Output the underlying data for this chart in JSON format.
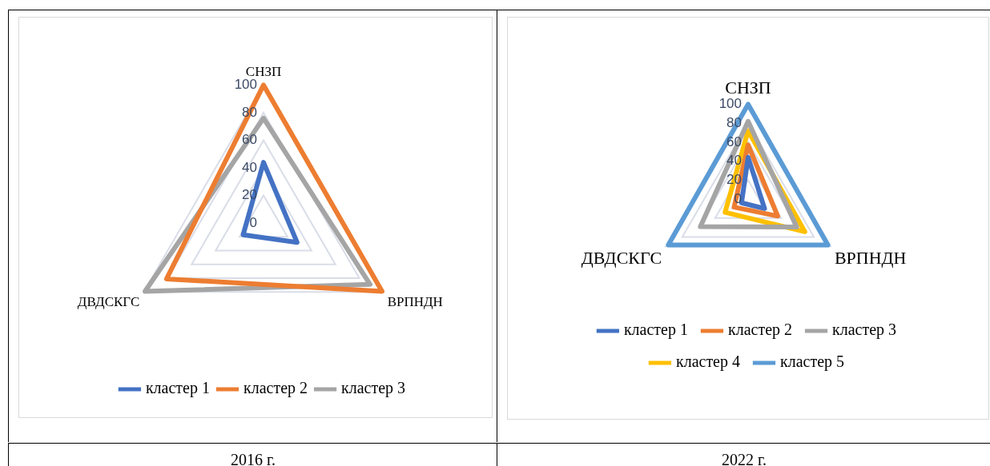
{
  "chart_data": [
    {
      "type": "radar",
      "categories": [
        "СНЗП",
        "ВРПНДН",
        "ДВДСКГС"
      ],
      "ylim": [
        0,
        100
      ],
      "yticks": [
        0,
        20,
        40,
        60,
        80,
        100
      ],
      "grid": true,
      "legend": "bottom",
      "marker": "none",
      "annotations": [
        "2016 г."
      ],
      "series": [
        {
          "name": "кластер 1",
          "color": "#4472c4",
          "values": [
            44,
            28,
            17
          ]
        },
        {
          "name": "кластер 2",
          "color": "#ed7d31",
          "values": [
            100,
            99,
            81
          ]
        },
        {
          "name": "кластер 3",
          "color": "#a5a5a5",
          "values": [
            76,
            89,
            99
          ]
        }
      ]
    },
    {
      "type": "radar",
      "categories": [
        "СНЗП",
        "ВРПНДН",
        "ДВДСКГС"
      ],
      "ylim": [
        0,
        100
      ],
      "yticks": [
        0,
        20,
        40,
        60,
        80,
        100
      ],
      "grid": true,
      "legend": "bottom",
      "marker": "none",
      "annotations": [
        "2022 г."
      ],
      "series": [
        {
          "name": "кластер 1",
          "color": "#4472c4",
          "values": [
            44,
            20,
            8
          ]
        },
        {
          "name": "кластер 2",
          "color": "#ed7d31",
          "values": [
            57,
            36,
            17
          ]
        },
        {
          "name": "кластер 3",
          "color": "#a5a5a5",
          "values": [
            82,
            59,
            58
          ]
        },
        {
          "name": "кластер 4",
          "color": "#ffc000",
          "values": [
            72,
            69,
            28
          ]
        },
        {
          "name": "кластер 5",
          "color": "#5b9bd5",
          "values": [
            100,
            97,
            97
          ]
        }
      ]
    }
  ]
}
